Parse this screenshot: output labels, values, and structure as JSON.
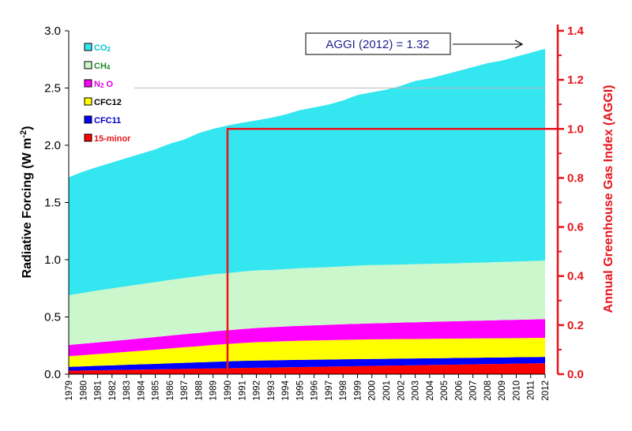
{
  "chart_data": {
    "type": "area",
    "stacked": true,
    "x": [
      1979,
      1980,
      1981,
      1982,
      1983,
      1984,
      1985,
      1986,
      1987,
      1988,
      1989,
      1990,
      1991,
      1992,
      1993,
      1994,
      1995,
      1996,
      1997,
      1998,
      1999,
      2000,
      2001,
      2002,
      2003,
      2004,
      2005,
      2006,
      2007,
      2008,
      2009,
      2010,
      2011,
      2012
    ],
    "ylabel_left": "Radiative Forcing (W m",
    "ylabel_left_sup": "-2",
    "ylabel_left_end": ")",
    "ylabel_right": "Annual Greenhouse Gas Index (AGGI)",
    "ylim_left": [
      0,
      3.0
    ],
    "ylim_right": [
      0,
      1.4
    ],
    "yticks_left": [
      "0.0",
      "0.5",
      "1.0",
      "1.5",
      "2.0",
      "2.5",
      "3.0"
    ],
    "yticks_right": [
      "0.0",
      "0.2",
      "0.4",
      "0.6",
      "0.8",
      "1.0",
      "1.2",
      "1.4"
    ],
    "legend_position": "top-left",
    "series": [
      {
        "name": "15-minor",
        "legend_html_main": "15-minor",
        "color": "#ff0000",
        "values": [
          0.03,
          0.032,
          0.034,
          0.036,
          0.038,
          0.04,
          0.042,
          0.044,
          0.046,
          0.048,
          0.05,
          0.052,
          0.054,
          0.056,
          0.058,
          0.06,
          0.062,
          0.064,
          0.066,
          0.068,
          0.07,
          0.072,
          0.074,
          0.076,
          0.078,
          0.08,
          0.082,
          0.084,
          0.086,
          0.088,
          0.09,
          0.092,
          0.094,
          0.096
        ]
      },
      {
        "name": "CFC11",
        "legend_html_main": "CFC11",
        "color": "#0000ff",
        "values": [
          0.034,
          0.036,
          0.039,
          0.041,
          0.044,
          0.046,
          0.048,
          0.051,
          0.053,
          0.055,
          0.058,
          0.06,
          0.062,
          0.063,
          0.063,
          0.063,
          0.063,
          0.063,
          0.062,
          0.062,
          0.061,
          0.061,
          0.06,
          0.06,
          0.059,
          0.059,
          0.058,
          0.058,
          0.057,
          0.057,
          0.056,
          0.056,
          0.055,
          0.055
        ]
      },
      {
        "name": "CFC12",
        "legend_html_main": "CFC12",
        "color": "#ffff00",
        "values": [
          0.093,
          0.098,
          0.103,
          0.108,
          0.113,
          0.118,
          0.124,
          0.13,
          0.136,
          0.141,
          0.147,
          0.152,
          0.156,
          0.16,
          0.163,
          0.165,
          0.167,
          0.168,
          0.169,
          0.17,
          0.171,
          0.171,
          0.171,
          0.171,
          0.17,
          0.17,
          0.17,
          0.169,
          0.169,
          0.168,
          0.168,
          0.167,
          0.167,
          0.166
        ]
      },
      {
        "name": "N2O",
        "legend_html_main": "N",
        "legend_sub": "2",
        "legend_tail": " O",
        "color": "#ff00ff",
        "values": [
          0.098,
          0.1,
          0.102,
          0.104,
          0.106,
          0.108,
          0.11,
          0.112,
          0.114,
          0.116,
          0.118,
          0.12,
          0.122,
          0.124,
          0.126,
          0.128,
          0.13,
          0.132,
          0.134,
          0.136,
          0.138,
          0.14,
          0.142,
          0.144,
          0.146,
          0.148,
          0.15,
          0.152,
          0.154,
          0.156,
          0.158,
          0.16,
          0.162,
          0.164
        ]
      },
      {
        "name": "CH4",
        "legend_html_main": "CH",
        "legend_sub": "4",
        "legend_tail": "",
        "color": "#ccf7cc",
        "values": [
          0.435,
          0.444,
          0.453,
          0.46,
          0.467,
          0.474,
          0.48,
          0.486,
          0.491,
          0.496,
          0.5,
          0.498,
          0.503,
          0.504,
          0.5,
          0.502,
          0.504,
          0.503,
          0.504,
          0.505,
          0.508,
          0.509,
          0.508,
          0.507,
          0.508,
          0.507,
          0.506,
          0.506,
          0.507,
          0.507,
          0.508,
          0.509,
          0.51,
          0.512
        ]
      },
      {
        "name": "CO2",
        "legend_html_main": "CO",
        "legend_sub": "2",
        "legend_tail": "",
        "color": "#33e6f0",
        "values": [
          1.03,
          1.06,
          1.08,
          1.1,
          1.12,
          1.14,
          1.16,
          1.19,
          1.21,
          1.25,
          1.27,
          1.29,
          1.3,
          1.31,
          1.33,
          1.35,
          1.38,
          1.4,
          1.42,
          1.45,
          1.49,
          1.51,
          1.53,
          1.56,
          1.6,
          1.62,
          1.65,
          1.68,
          1.71,
          1.74,
          1.76,
          1.79,
          1.82,
          1.85
        ]
      }
    ],
    "aggi_reference": {
      "year": 1990,
      "value": 1.0,
      "color": "#e8151b"
    },
    "annotation": {
      "text": "AGGI (2012) = 1.32",
      "arrow_to_year": 2012
    }
  }
}
